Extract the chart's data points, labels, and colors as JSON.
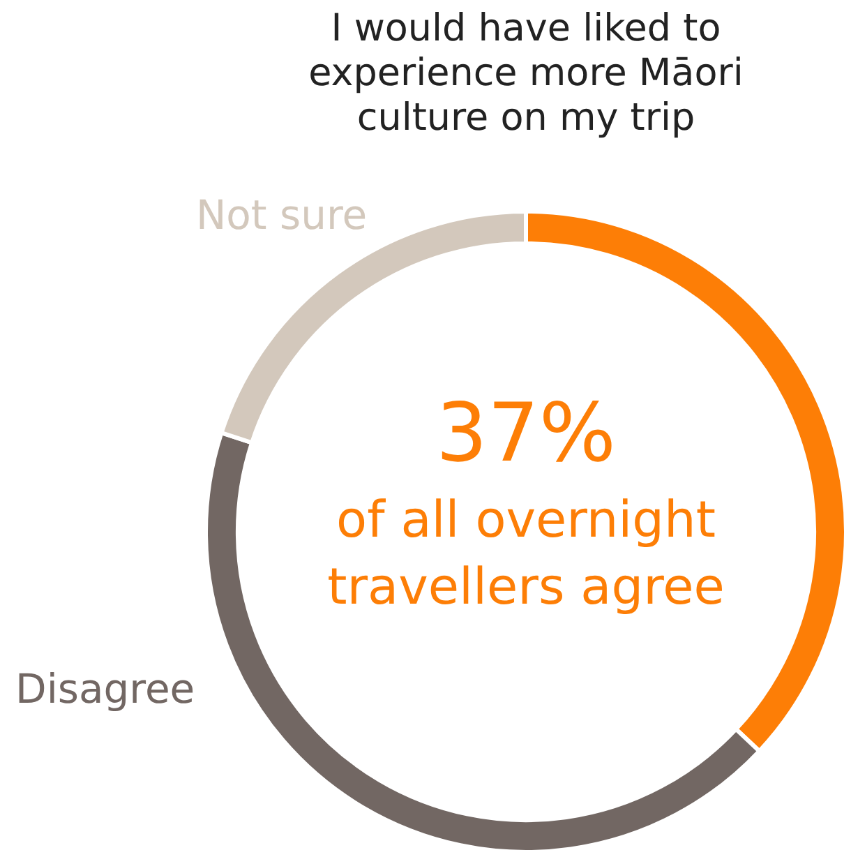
{
  "chart_data": {
    "type": "donut",
    "title": "I would have liked to experience more Māori culture on my trip",
    "categories": [
      null,
      "Disagree",
      "Not sure"
    ],
    "values": [
      37,
      43,
      20
    ],
    "colors": [
      "#fd7e06",
      "#726763",
      "#d3c8bc"
    ],
    "value_labels": [
      "37%",
      null,
      null
    ],
    "annotations": [
      "of all overnight travellers agree"
    ]
  }
}
